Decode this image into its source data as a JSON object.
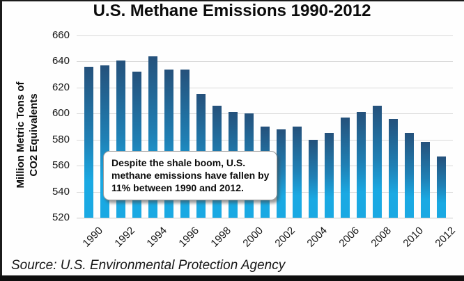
{
  "title": "U.S. Methane Emissions 1990-2012",
  "y_axis_label_line1": "Million Metric Tons of",
  "y_axis_label_line2": "CO2 Equivalents",
  "annotation": "Despite the shale boom, U.S. methane emissions have fallen by 11% between 1990 and 2012.",
  "source": "Source: U.S. Environmental Protection Agency",
  "colors": {
    "bar_gradient_top": "#25517b",
    "bar_gradient_mid": "#1f80b5",
    "bar_gradient_bottom": "#1aa9e3",
    "gridline": "#d8d8d8",
    "frame": "#1b1b1b",
    "text": "#111111"
  },
  "chart_data": {
    "type": "bar",
    "title": "U.S. Methane Emissions 1990-2012",
    "xlabel": "",
    "ylabel": "Million Metric Tons of CO2 Equivalents",
    "x": [
      1990,
      1991,
      1992,
      1993,
      1994,
      1995,
      1996,
      1997,
      1998,
      1999,
      2000,
      2001,
      2002,
      2003,
      2004,
      2005,
      2006,
      2007,
      2008,
      2009,
      2010,
      2011,
      2012
    ],
    "values": [
      636,
      637,
      641,
      632,
      644,
      634,
      634,
      615,
      606,
      601,
      600,
      590,
      588,
      590,
      580,
      585,
      597,
      601,
      606,
      596,
      585,
      578,
      567
    ],
    "ylim": [
      520,
      660
    ],
    "yticks": [
      520,
      540,
      560,
      580,
      600,
      620,
      640,
      660
    ],
    "xtick_labels": [
      "1990",
      "1992",
      "1994",
      "1996",
      "1998",
      "2000",
      "2002",
      "2004",
      "2006",
      "2008",
      "2010",
      "2012"
    ],
    "grid": true,
    "legend": false,
    "annotation": "Despite the shale boom, U.S. methane emissions have fallen by 11% between 1990 and 2012."
  }
}
